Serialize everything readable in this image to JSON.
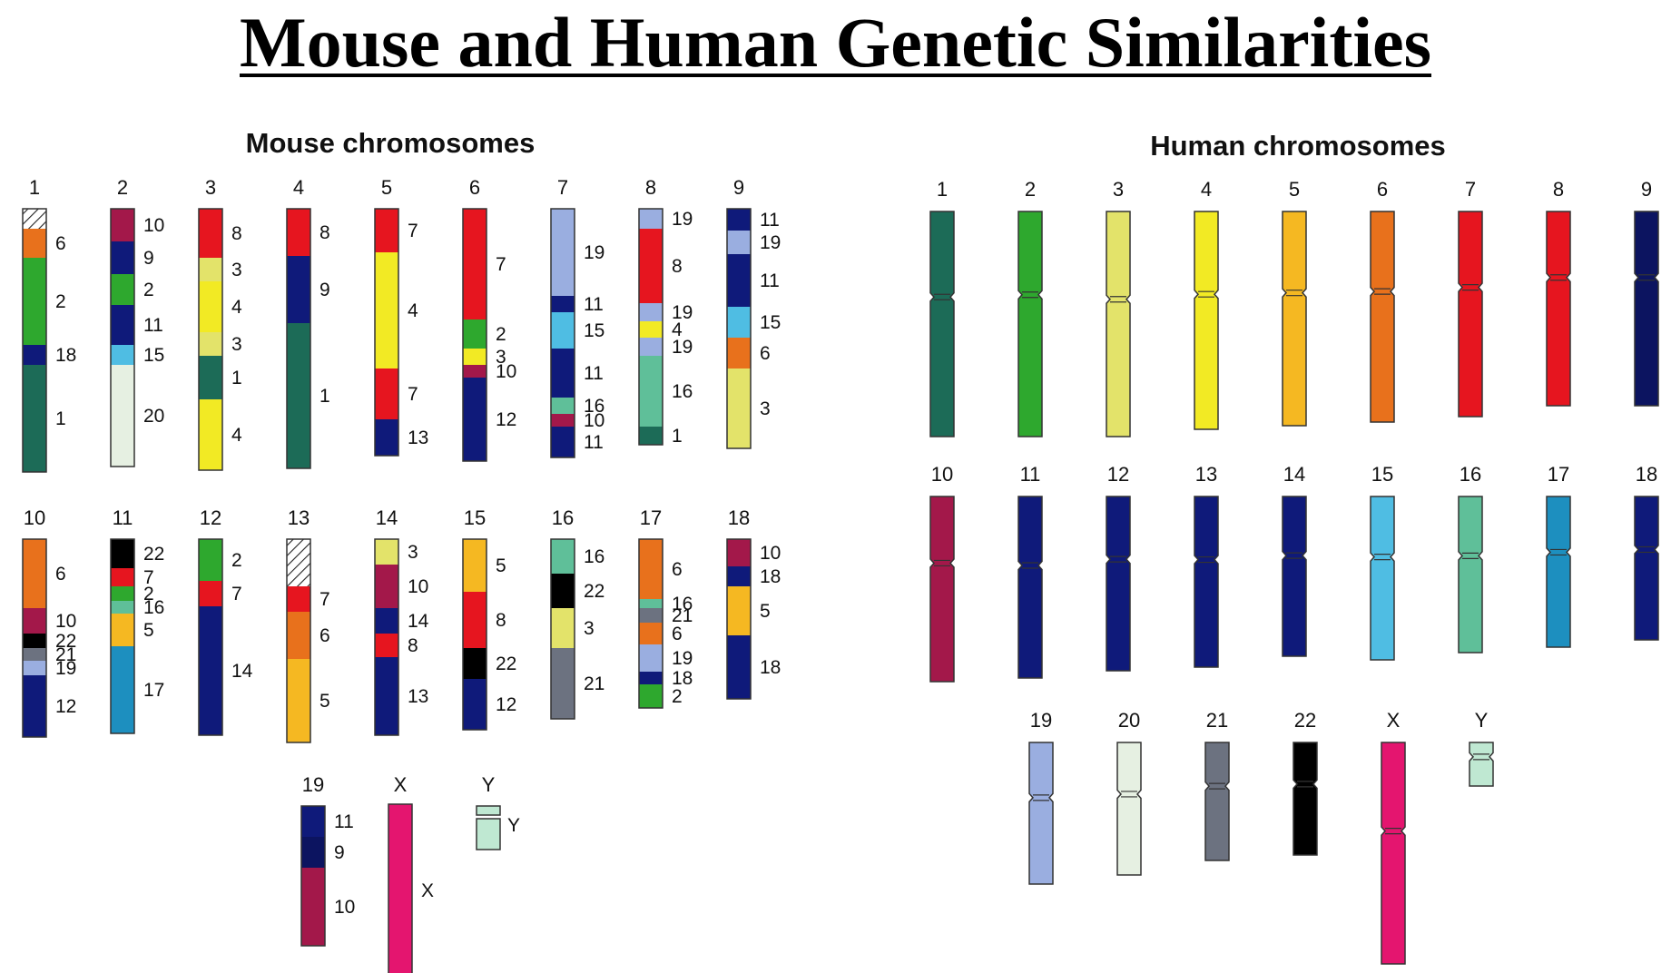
{
  "title": "Mouse and Human Genetic Similarities",
  "mouse": {
    "heading": "Mouse chromosomes",
    "chromosomes": [
      {
        "label": "1",
        "segments": [
          {
            "color": "hatch",
            "size": 22
          },
          {
            "color": "#e8711c",
            "size": 32,
            "label": "6"
          },
          {
            "color": "#2ea82e",
            "size": 96,
            "label": "2"
          },
          {
            "color": "#0f1a7a",
            "size": 22,
            "label": "18"
          },
          {
            "color": "#1c6b57",
            "size": 118,
            "label": "1"
          }
        ]
      },
      {
        "label": "2",
        "segments": [
          {
            "color": "#a3184a",
            "size": 36,
            "label": "10"
          },
          {
            "color": "#0f1a7a",
            "size": 36,
            "label": "9"
          },
          {
            "color": "#2ea82e",
            "size": 34,
            "label": "2"
          },
          {
            "color": "#0f1a7a",
            "size": 44,
            "label": "11"
          },
          {
            "color": "#4fbde3",
            "size": 22,
            "label": "15"
          },
          {
            "color": "#e6f0e2",
            "size": 112,
            "label": "20"
          }
        ]
      },
      {
        "label": "3",
        "segments": [
          {
            "color": "#e6151f",
            "size": 54,
            "label": "8"
          },
          {
            "color": "#e3e36a",
            "size": 26,
            "label": "3"
          },
          {
            "color": "#f2ea24",
            "size": 56,
            "label": "4"
          },
          {
            "color": "#e3e36a",
            "size": 26,
            "label": "3"
          },
          {
            "color": "#1c6b57",
            "size": 48,
            "label": "1"
          },
          {
            "color": "#f2ea24",
            "size": 78,
            "label": "4"
          }
        ]
      },
      {
        "label": "4",
        "segments": [
          {
            "color": "#e6151f",
            "size": 52,
            "label": "8"
          },
          {
            "color": "#0f1a7a",
            "size": 74,
            "label": "9"
          },
          {
            "color": "#1c6b57",
            "size": 160,
            "label": "1"
          }
        ]
      },
      {
        "label": "5",
        "segments": [
          {
            "color": "#e6151f",
            "size": 48,
            "label": "7"
          },
          {
            "color": "#f2ea24",
            "size": 128,
            "label": "4"
          },
          {
            "color": "#e6151f",
            "size": 56,
            "label": "7"
          },
          {
            "color": "#0f1a7a",
            "size": 40,
            "label": "13"
          }
        ]
      },
      {
        "label": "6",
        "segments": [
          {
            "color": "#e6151f",
            "size": 122,
            "label": "7"
          },
          {
            "color": "#2ea82e",
            "size": 32,
            "label": "2"
          },
          {
            "color": "#f2ea24",
            "size": 18,
            "label": "3"
          },
          {
            "color": "#a3184a",
            "size": 14,
            "label": "10"
          },
          {
            "color": "#0f1a7a",
            "size": 92,
            "label": "12"
          }
        ]
      },
      {
        "label": "7",
        "segments": [
          {
            "color": "#9aaee0",
            "size": 96,
            "label": "19"
          },
          {
            "color": "#0f1a7a",
            "size": 18,
            "label": "11"
          },
          {
            "color": "#4fbde3",
            "size": 40,
            "label": "15"
          },
          {
            "color": "#0f1a7a",
            "size": 54,
            "label": "11"
          },
          {
            "color": "#5fbf99",
            "size": 18,
            "label": "16"
          },
          {
            "color": "#a3184a",
            "size": 14,
            "label": "10"
          },
          {
            "color": "#0f1a7a",
            "size": 34,
            "label": "11"
          }
        ]
      },
      {
        "label": "8",
        "segments": [
          {
            "color": "#9aaee0",
            "size": 22,
            "label": "19"
          },
          {
            "color": "#e6151f",
            "size": 82,
            "label": "8"
          },
          {
            "color": "#9aaee0",
            "size": 20,
            "label": "19"
          },
          {
            "color": "#f2ea24",
            "size": 18,
            "label": "4"
          },
          {
            "color": "#9aaee0",
            "size": 20,
            "label": "19"
          },
          {
            "color": "#5fbf99",
            "size": 78,
            "label": "16"
          },
          {
            "color": "#1c6b57",
            "size": 20,
            "label": "1"
          }
        ]
      },
      {
        "label": "9",
        "segments": [
          {
            "color": "#0f1a7a",
            "size": 24,
            "label": "11"
          },
          {
            "color": "#9aaee0",
            "size": 26,
            "label": "19"
          },
          {
            "color": "#0f1a7a",
            "size": 58,
            "label": "11"
          },
          {
            "color": "#4fbde3",
            "size": 34,
            "label": "15"
          },
          {
            "color": "#e8711c",
            "size": 34,
            "label": "6"
          },
          {
            "color": "#e3e36a",
            "size": 88,
            "label": "3"
          }
        ]
      },
      {
        "label": "10",
        "segments": [
          {
            "color": "#e8711c",
            "size": 76,
            "label": "6"
          },
          {
            "color": "#a3184a",
            "size": 28,
            "label": "10"
          },
          {
            "color": "#000000",
            "size": 16,
            "label": "22"
          },
          {
            "color": "#6c7280",
            "size": 14,
            "label": "21"
          },
          {
            "color": "#9aaee0",
            "size": 16,
            "label": "19"
          },
          {
            "color": "#0f1a7a",
            "size": 68,
            "label": "12"
          }
        ]
      },
      {
        "label": "11",
        "segments": [
          {
            "color": "#000000",
            "size": 32,
            "label": "22"
          },
          {
            "color": "#e6151f",
            "size": 20,
            "label": "7"
          },
          {
            "color": "#2ea82e",
            "size": 16,
            "label": "2"
          },
          {
            "color": "#5fbf99",
            "size": 14,
            "label": "16"
          },
          {
            "color": "#f5b822",
            "size": 36,
            "label": "5"
          },
          {
            "color": "#1d8fbf",
            "size": 96,
            "label": "17"
          }
        ]
      },
      {
        "label": "12",
        "segments": [
          {
            "color": "#2ea82e",
            "size": 46,
            "label": "2"
          },
          {
            "color": "#e6151f",
            "size": 28,
            "label": "7"
          },
          {
            "color": "#0f1a7a",
            "size": 142,
            "label": "14"
          }
        ]
      },
      {
        "label": "13",
        "segments": [
          {
            "color": "hatch",
            "size": 52
          },
          {
            "color": "#e6151f",
            "size": 28,
            "label": "7"
          },
          {
            "color": "#e8711c",
            "size": 52,
            "label": "6"
          },
          {
            "color": "#f5b822",
            "size": 92,
            "label": "5"
          }
        ]
      },
      {
        "label": "14",
        "segments": [
          {
            "color": "#e3e36a",
            "size": 28,
            "label": "3"
          },
          {
            "color": "#a3184a",
            "size": 48,
            "label": "10"
          },
          {
            "color": "#0f1a7a",
            "size": 28,
            "label": "14"
          },
          {
            "color": "#e6151f",
            "size": 26,
            "label": "8"
          },
          {
            "color": "#0f1a7a",
            "size": 86,
            "label": "13"
          }
        ]
      },
      {
        "label": "15",
        "segments": [
          {
            "color": "#f5b822",
            "size": 58,
            "label": "5"
          },
          {
            "color": "#e6151f",
            "size": 62,
            "label": "8"
          },
          {
            "color": "#000000",
            "size": 34,
            "label": "22"
          },
          {
            "color": "#0f1a7a",
            "size": 56,
            "label": "12"
          }
        ]
      },
      {
        "label": "16",
        "segments": [
          {
            "color": "#5fbf99",
            "size": 38,
            "label": "16"
          },
          {
            "color": "#000000",
            "size": 38,
            "label": "22"
          },
          {
            "color": "#e3e36a",
            "size": 44,
            "label": "3"
          },
          {
            "color": "#6c7280",
            "size": 78,
            "label": "21"
          }
        ]
      },
      {
        "label": "17",
        "segments": [
          {
            "color": "#e8711c",
            "size": 66,
            "label": "6"
          },
          {
            "color": "#5fbf99",
            "size": 10,
            "label": "16"
          },
          {
            "color": "#6c7280",
            "size": 16,
            "label": "21"
          },
          {
            "color": "#e8711c",
            "size": 24,
            "label": "6"
          },
          {
            "color": "#9aaee0",
            "size": 30,
            "label": "19"
          },
          {
            "color": "#0f1a7a",
            "size": 14,
            "label": "18"
          },
          {
            "color": "#2ea82e",
            "size": 26,
            "label": "2"
          }
        ]
      },
      {
        "label": "18",
        "segments": [
          {
            "color": "#a3184a",
            "size": 30,
            "label": "10"
          },
          {
            "color": "#0f1a7a",
            "size": 22,
            "label": "18"
          },
          {
            "color": "#f5b822",
            "size": 54,
            "label": "5"
          },
          {
            "color": "#0f1a7a",
            "size": 70,
            "label": "18"
          }
        ]
      },
      {
        "label": "19",
        "segments": [
          {
            "color": "#0f1a7a",
            "size": 34,
            "label": "11"
          },
          {
            "color": "#0c1460",
            "size": 34,
            "label": "9"
          },
          {
            "color": "#a3184a",
            "size": 86,
            "label": "10"
          }
        ]
      },
      {
        "label": "X",
        "segments": [
          {
            "color": "#e4156f",
            "size": 190,
            "label": "X"
          }
        ]
      },
      {
        "label": "Y",
        "segments": [
          {
            "color": "#bfe8d2",
            "size": 48,
            "label": "Y"
          }
        ]
      }
    ]
  },
  "human": {
    "heading": "Human chromosomes",
    "chromosomes": [
      {
        "label": "1",
        "color": "#1c6b57",
        "p": 0.38,
        "len": 248
      },
      {
        "label": "2",
        "color": "#2ea82e",
        "p": 0.37,
        "len": 248
      },
      {
        "label": "3",
        "color": "#e3e36a",
        "p": 0.39,
        "len": 248
      },
      {
        "label": "4",
        "color": "#f2ea24",
        "p": 0.38,
        "len": 240
      },
      {
        "label": "5",
        "color": "#f5b822",
        "p": 0.38,
        "len": 236
      },
      {
        "label": "6",
        "color": "#e8711c",
        "p": 0.38,
        "len": 232
      },
      {
        "label": "7",
        "color": "#e6151f",
        "p": 0.37,
        "len": 226
      },
      {
        "label": "8",
        "color": "#e6151f",
        "p": 0.34,
        "len": 214
      },
      {
        "label": "9",
        "color": "#0c1460",
        "p": 0.34,
        "len": 214
      },
      {
        "label": "10",
        "color": "#a3184a",
        "p": 0.36,
        "len": 204
      },
      {
        "label": "11",
        "color": "#0f1a7a",
        "p": 0.38,
        "len": 200
      },
      {
        "label": "12",
        "color": "#0f1a7a",
        "p": 0.36,
        "len": 192
      },
      {
        "label": "13",
        "color": "#0f1a7a",
        "p": 0.37,
        "len": 188
      },
      {
        "label": "14",
        "color": "#0f1a7a",
        "p": 0.37,
        "len": 176
      },
      {
        "label": "15",
        "color": "#4fbde3",
        "p": 0.37,
        "len": 180
      },
      {
        "label": "16",
        "color": "#5fbf99",
        "p": 0.38,
        "len": 172
      },
      {
        "label": "17",
        "color": "#1d8fbf",
        "p": 0.37,
        "len": 166
      },
      {
        "label": "18",
        "color": "#0f1a7a",
        "p": 0.37,
        "len": 158
      },
      {
        "label": "19",
        "color": "#9aaee0",
        "p": 0.39,
        "len": 156
      },
      {
        "label": "20",
        "color": "#e6f0e2",
        "p": 0.39,
        "len": 146
      },
      {
        "label": "21",
        "color": "#6c7280",
        "p": 0.37,
        "len": 130
      },
      {
        "label": "22",
        "color": "#000000",
        "p": 0.37,
        "len": 124
      },
      {
        "label": "X",
        "color": "#e4156f",
        "p": 0.4,
        "len": 244
      },
      {
        "label": "Y",
        "color": "#bfe8d2",
        "p": 0.33,
        "len": 48
      }
    ]
  }
}
